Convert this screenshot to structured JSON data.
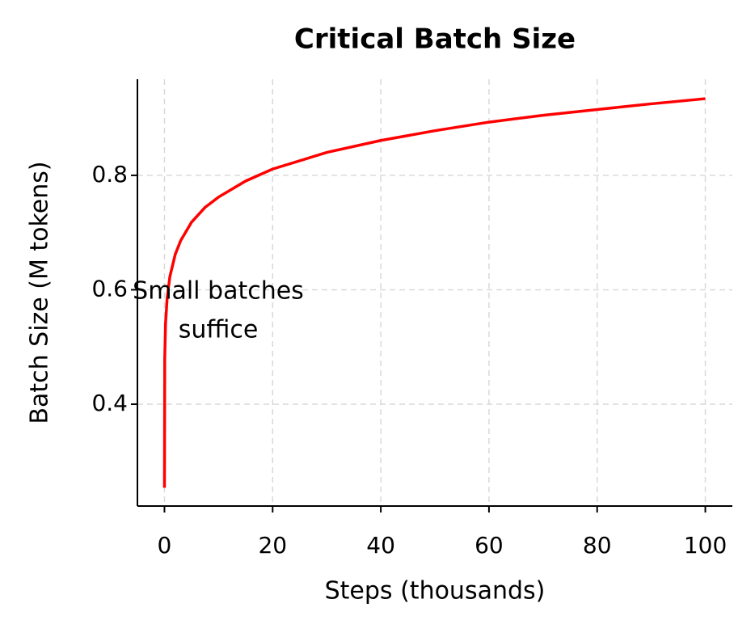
{
  "chart_data": {
    "type": "line",
    "title": "Critical Batch Size",
    "x_label": "Steps (thousands)",
    "y_label": "Batch Size (M tokens)",
    "x": [
      0,
      0.05,
      0.2,
      0.5,
      1,
      2,
      3,
      5,
      7.5,
      10,
      15,
      20,
      30,
      40,
      50,
      60,
      70,
      80,
      90,
      100
    ],
    "series": [
      {
        "color": "#ff0000",
        "values": [
          0.254,
          0.479,
          0.541,
          0.586,
          0.623,
          0.662,
          0.686,
          0.718,
          0.744,
          0.762,
          0.79,
          0.811,
          0.84,
          0.861,
          0.878,
          0.893,
          0.905,
          0.915,
          0.925,
          0.934
        ]
      }
    ],
    "xlim": [
      -5,
      105
    ],
    "ylim": [
      0.222,
      0.968
    ],
    "xticks": [
      0,
      20,
      40,
      60,
      80,
      100
    ],
    "yticks": [
      0.4,
      0.6,
      0.8
    ],
    "grid": true,
    "annotation": [
      "Small batches",
      "suffice"
    ]
  }
}
